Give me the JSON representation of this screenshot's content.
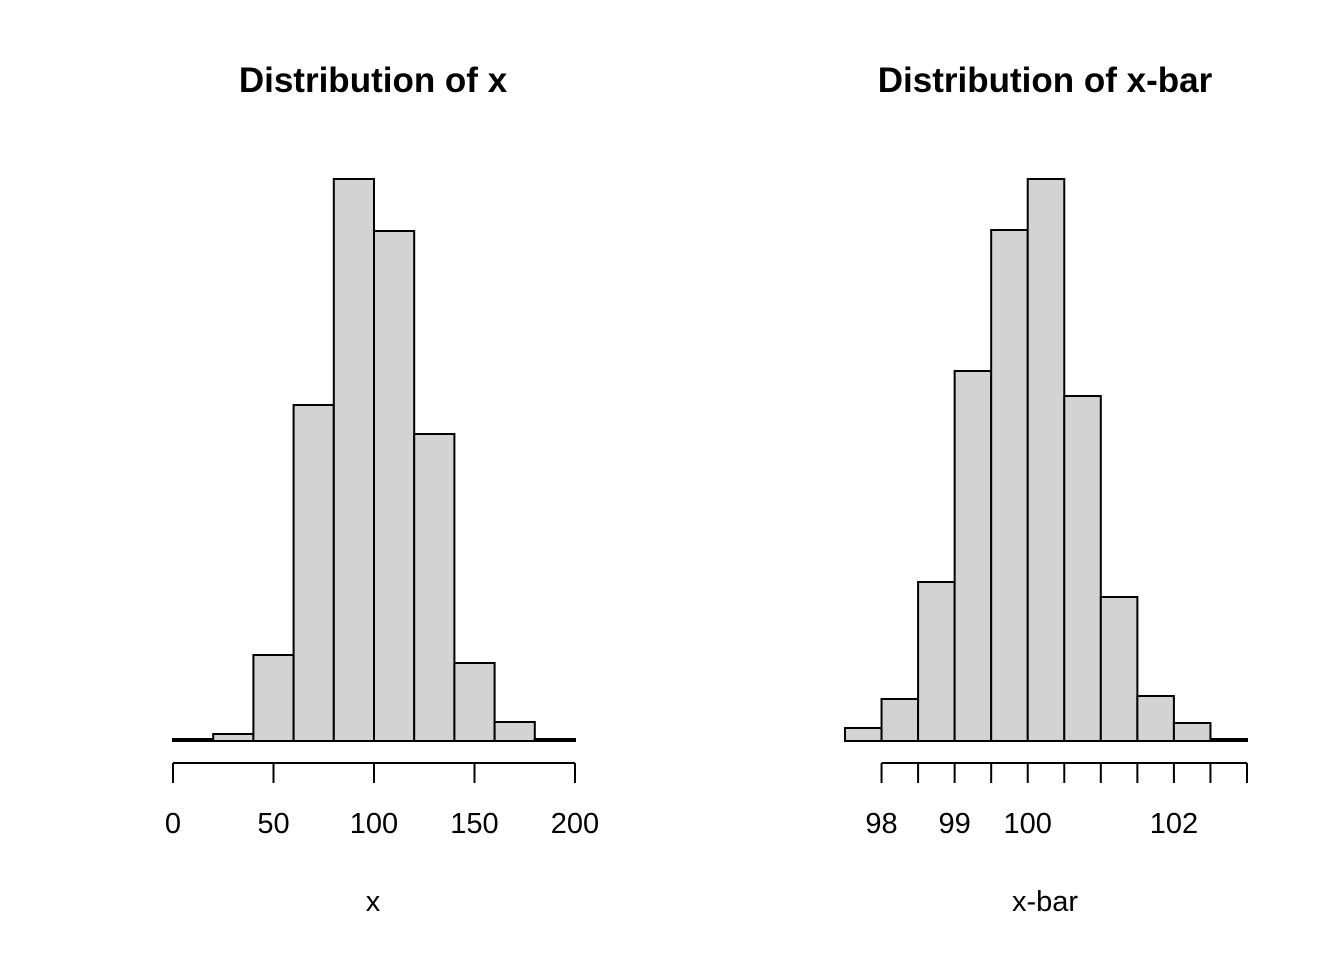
{
  "chart_data": [
    {
      "type": "bar",
      "title": "Distribution of x",
      "xlabel": "x",
      "ylabel": "",
      "bins": [
        {
          "start": 0,
          "end": 20,
          "count": 2
        },
        {
          "start": 20,
          "end": 40,
          "count": 7
        },
        {
          "start": 40,
          "end": 60,
          "count": 86
        },
        {
          "start": 60,
          "end": 80,
          "count": 336
        },
        {
          "start": 80,
          "end": 100,
          "count": 562
        },
        {
          "start": 100,
          "end": 120,
          "count": 510
        },
        {
          "start": 120,
          "end": 140,
          "count": 307
        },
        {
          "start": 140,
          "end": 160,
          "count": 78
        },
        {
          "start": 160,
          "end": 180,
          "count": 19
        },
        {
          "start": 180,
          "end": 200,
          "count": 2
        }
      ],
      "xticks": [
        0,
        50,
        100,
        150,
        200
      ],
      "xlim": [
        0,
        200
      ],
      "ylim": [
        0,
        562
      ]
    },
    {
      "type": "bar",
      "title": "Distribution of x-bar",
      "xlabel": "x-bar",
      "ylabel": "",
      "bins": [
        {
          "start": 97.5,
          "end": 98.0,
          "count": 13
        },
        {
          "start": 98.0,
          "end": 98.5,
          "count": 42
        },
        {
          "start": 98.5,
          "end": 99.0,
          "count": 159
        },
        {
          "start": 99.0,
          "end": 99.5,
          "count": 370
        },
        {
          "start": 99.5,
          "end": 100.0,
          "count": 511
        },
        {
          "start": 100.0,
          "end": 100.5,
          "count": 562
        },
        {
          "start": 100.5,
          "end": 101.0,
          "count": 345
        },
        {
          "start": 101.0,
          "end": 101.5,
          "count": 144
        },
        {
          "start": 101.5,
          "end": 102.0,
          "count": 45
        },
        {
          "start": 102.0,
          "end": 102.5,
          "count": 18
        },
        {
          "start": 102.5,
          "end": 103.0,
          "count": 2
        }
      ],
      "xticks": [
        98,
        98.5,
        99,
        99.5,
        100,
        100.5,
        101,
        101.5,
        102,
        102.5,
        103
      ],
      "xtick_labels": [
        "98",
        "",
        "99",
        "",
        "100",
        "",
        "",
        "",
        "102",
        "",
        ""
      ],
      "xlim": [
        97.5,
        103
      ],
      "ylim": [
        0,
        562
      ]
    }
  ]
}
